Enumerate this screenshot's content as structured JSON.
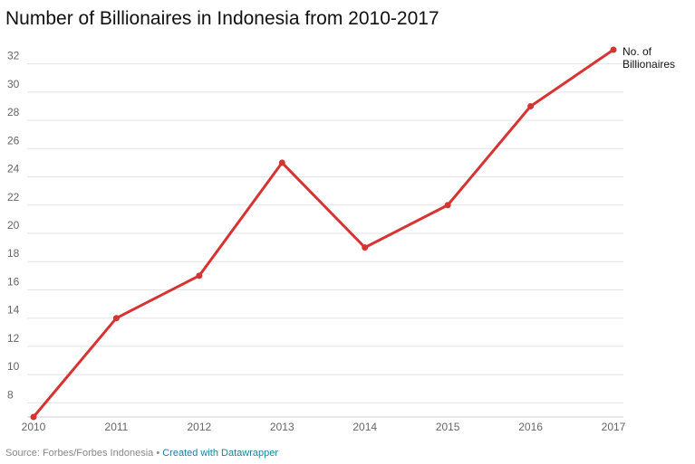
{
  "header": {
    "title": "Number of Billionaires in Indonesia from 2010-2017"
  },
  "footer": {
    "source": "Source: Forbes/Forbes Indonesia",
    "separator": " • ",
    "credit": "Created with Datawrapper"
  },
  "chart_data": {
    "type": "line",
    "title": "Number of Billionaires in Indonesia from 2010-2017",
    "xlabel": "",
    "ylabel": "",
    "x": [
      "2010",
      "2011",
      "2012",
      "2013",
      "2014",
      "2015",
      "2016",
      "2017"
    ],
    "series": [
      {
        "name": "No. of Billionaires",
        "color": "#d63333",
        "values": [
          7,
          14,
          17,
          25,
          19,
          22,
          29,
          33
        ]
      }
    ],
    "ylim": [
      7,
      33
    ],
    "yticks": [
      8,
      10,
      12,
      14,
      16,
      18,
      20,
      22,
      24,
      26,
      28,
      30,
      32
    ],
    "grid": true,
    "legend": "line-end label"
  }
}
